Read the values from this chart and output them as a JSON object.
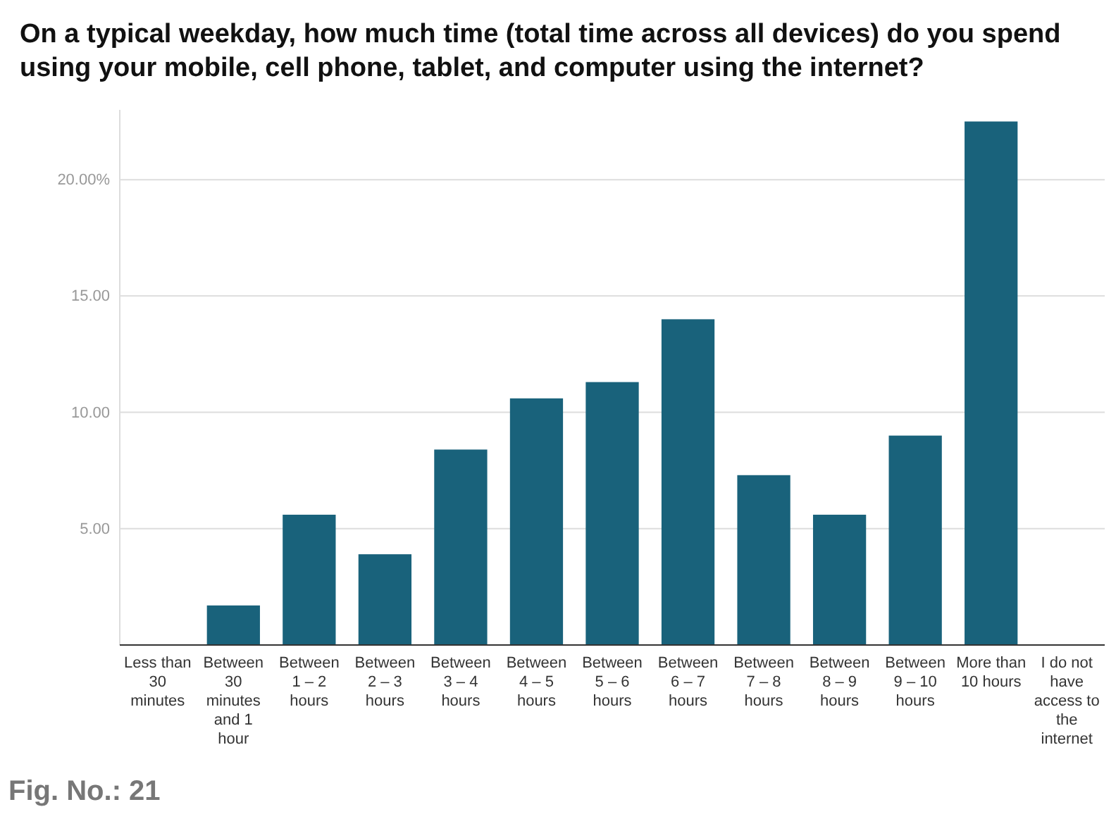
{
  "chart_data": {
    "type": "bar",
    "title": "On a typical weekday, how much time (total time across all devices) do you spend using your mobile, cell phone, tablet, and computer using the internet?",
    "categories": [
      "Less than 30 minutes",
      "Between 30 minutes and 1 hour",
      "Between 1 – 2 hours",
      "Between 2 – 3 hours",
      "Between 3 – 4 hours",
      "Between 4 – 5 hours",
      "Between 5 – 6 hours",
      "Between 6 – 7 hours",
      "Between 7 – 8 hours",
      "Between 8 – 9 hours",
      "Between 9 – 10 hours",
      "More than 10 hours",
      "I do not have access to the internet"
    ],
    "values": [
      0,
      1.7,
      5.6,
      3.9,
      8.4,
      10.6,
      11.3,
      14.0,
      7.3,
      5.6,
      9.0,
      22.5,
      0
    ],
    "color": "#19627b",
    "ylim": [
      0,
      23
    ],
    "yticks": [
      {
        "value": 5,
        "label": "5.00"
      },
      {
        "value": 10,
        "label": "10.00"
      },
      {
        "value": 15,
        "label": "15.00"
      },
      {
        "value": 20,
        "label": "20.00%"
      }
    ],
    "grid": "y",
    "annotations": [
      "Fig. No.: 21"
    ]
  }
}
